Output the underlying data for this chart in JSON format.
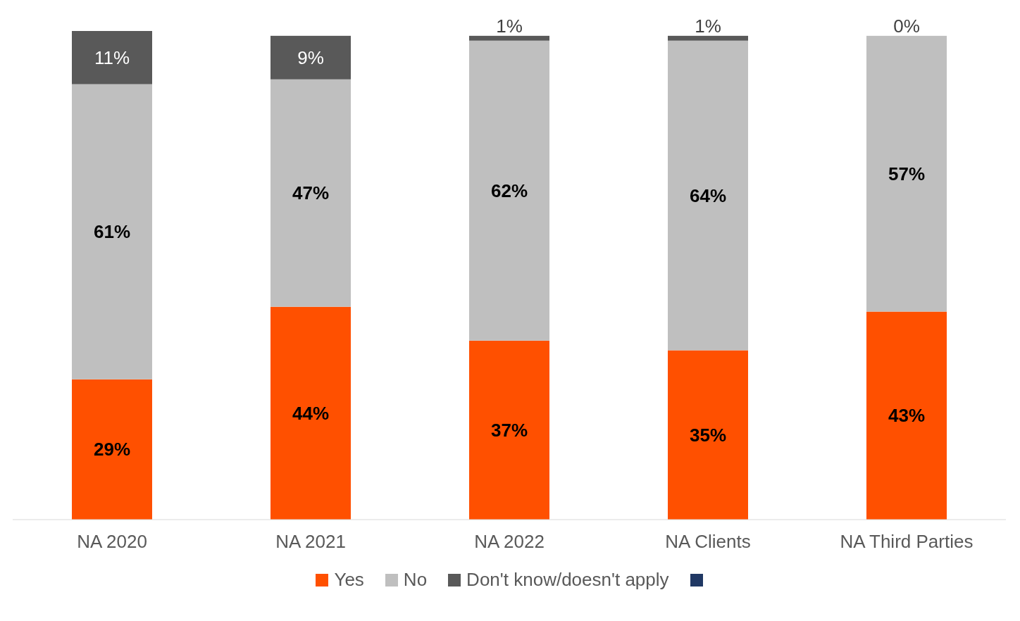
{
  "chart_data": {
    "type": "bar",
    "stacked": true,
    "categories": [
      "NA 2020",
      "NA 2021",
      "NA 2022",
      "NA Clients",
      "NA Third Parties"
    ],
    "ylim": [
      0,
      101
    ],
    "tick_labels": "x",
    "grid": false,
    "legend": "bottom",
    "series": [
      {
        "name": "Yes",
        "color": "#ff5000",
        "values": [
          29,
          44,
          37,
          35,
          43
        ],
        "value_labels": [
          "29%",
          "44%",
          "37%",
          "35%",
          "43%"
        ]
      },
      {
        "name": "No",
        "color": "#bfbfbf",
        "values": [
          61,
          47,
          62,
          64,
          57
        ],
        "value_labels": [
          "61%",
          "47%",
          "62%",
          "64%",
          "57%"
        ]
      },
      {
        "name": "Don't know/doesn't apply",
        "color": "#595959",
        "values": [
          11,
          9,
          1,
          1,
          0
        ],
        "value_labels": [
          "11%",
          "9%",
          "1%",
          "1%",
          "0%"
        ]
      },
      {
        "color": "#203864",
        "values": [
          null,
          null,
          null,
          null,
          null
        ]
      }
    ]
  }
}
